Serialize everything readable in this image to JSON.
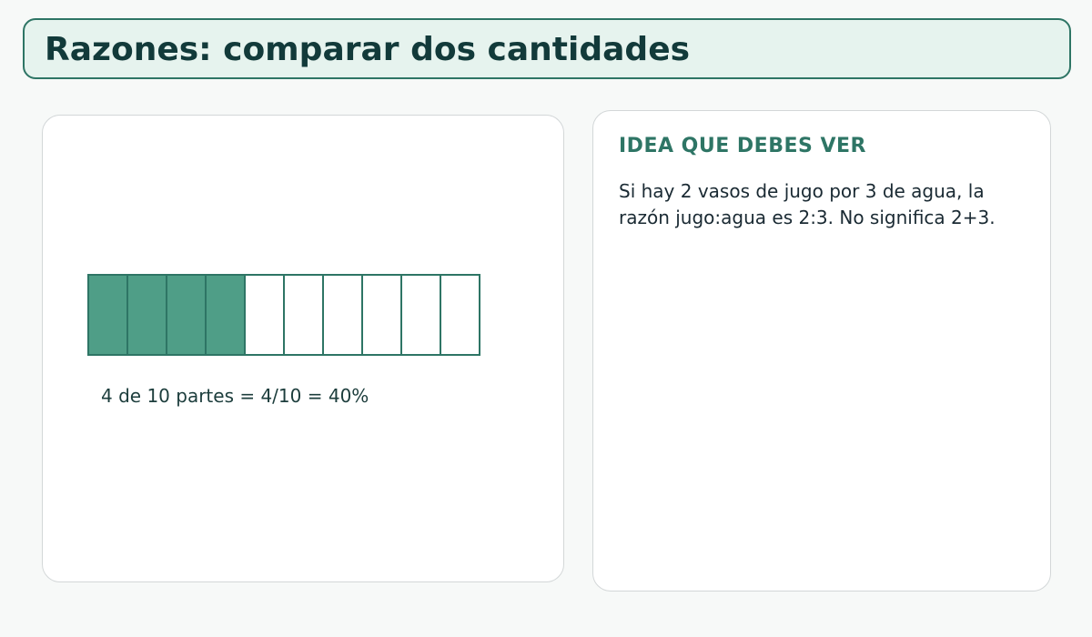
{
  "header": {
    "title": "Razones: comparar dos cantidades"
  },
  "diagram": {
    "total_parts": 10,
    "filled_parts": 4,
    "caption": "4 de 10 partes = 4/10 = 40%",
    "colors": {
      "filled": "#4f9e87",
      "stroke": "#2e7565",
      "empty": "#ffffff"
    }
  },
  "idea": {
    "heading": "IDEA QUE DEBES VER",
    "body": "Si hay 2 vasos de jugo por 3 de agua, la razón jugo:agua es 2:3. No significa 2+3."
  },
  "colors": {
    "accent": "#2e7565",
    "title_text": "#123a3a",
    "banner_bg": "#e6f3ee",
    "page_bg": "#f7f9f8"
  }
}
